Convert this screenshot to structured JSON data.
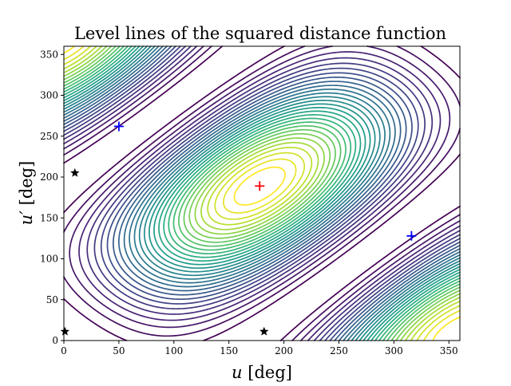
{
  "chart_data": {
    "type": "contour",
    "title": "Level lines of the squared distance function",
    "xlabel": "u [deg]",
    "ylabel": "u′ [deg]",
    "xlabel_parts": {
      "var": "u",
      "unit": " [deg]"
    },
    "ylabel_parts": {
      "var": "u′",
      "unit": " [deg]"
    },
    "xlim": [
      0,
      360
    ],
    "ylim": [
      0,
      360
    ],
    "xticks": [
      0,
      50,
      100,
      150,
      200,
      250,
      300,
      350
    ],
    "yticks": [
      0,
      50,
      100,
      150,
      200,
      250,
      300,
      350
    ],
    "grid": false,
    "legend": "none",
    "colormap": "viridis",
    "level_count": 30,
    "maximum_point": {
      "x": 178,
      "y": 189
    },
    "markers": [
      {
        "kind": "plus",
        "color": "#ff0000",
        "x": 178,
        "y": 189
      },
      {
        "kind": "plus",
        "color": "#0000ff",
        "x": 50,
        "y": 262
      },
      {
        "kind": "plus",
        "color": "#0000ff",
        "x": 316,
        "y": 128
      },
      {
        "kind": "star",
        "color": "#000000",
        "x": 10,
        "y": 205
      },
      {
        "kind": "star",
        "color": "#000000",
        "x": 182,
        "y": 11
      },
      {
        "kind": "star",
        "color": "#000000",
        "x": 1,
        "y": 11
      }
    ]
  }
}
